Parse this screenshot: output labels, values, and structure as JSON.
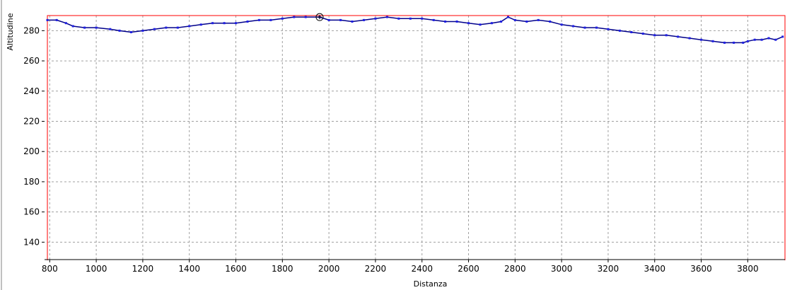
{
  "chart_data": {
    "type": "line",
    "title": "",
    "xlabel": "Distanza",
    "ylabel": "Altitudine",
    "xlim": [
      790,
      3960
    ],
    "ylim": [
      128,
      290
    ],
    "x_ticks": [
      "800",
      "1000",
      "1200",
      "1400",
      "1600",
      "1800",
      "2000",
      "2200",
      "2400",
      "2600",
      "2800",
      "3000",
      "3200",
      "3400",
      "3600",
      "3800"
    ],
    "y_ticks": [
      "140",
      "160",
      "180",
      "200",
      "220",
      "240",
      "260",
      "280"
    ],
    "grid": true,
    "legend": "none",
    "highlight_point": {
      "x": 1960,
      "y": 289
    },
    "series": [
      {
        "x": [
          790,
          830,
          870,
          900,
          950,
          1000,
          1060,
          1100,
          1150,
          1200,
          1250,
          1300,
          1350,
          1400,
          1450,
          1500,
          1550,
          1600,
          1650,
          1700,
          1750,
          1800,
          1850,
          1900,
          1960,
          2000,
          2050,
          2100,
          2150,
          2200,
          2250,
          2300,
          2350,
          2400,
          2450,
          2500,
          2550,
          2600,
          2650,
          2700,
          2740,
          2770,
          2800,
          2850,
          2900,
          2950,
          3000,
          3050,
          3100,
          3150,
          3200,
          3250,
          3300,
          3350,
          3400,
          3450,
          3500,
          3550,
          3600,
          3650,
          3700,
          3740,
          3780,
          3800,
          3830,
          3860,
          3890,
          3920,
          3950
        ],
        "y": [
          287,
          287,
          285,
          283,
          282,
          282,
          281,
          280,
          279,
          280,
          281,
          282,
          282,
          283,
          284,
          285,
          285,
          285,
          286,
          287,
          287,
          288,
          289,
          289,
          289,
          287,
          287,
          286,
          287,
          288,
          289,
          288,
          288,
          288,
          287,
          286,
          286,
          285,
          284,
          285,
          286,
          289,
          287,
          286,
          287,
          286,
          284,
          283,
          282,
          282,
          281,
          280,
          279,
          278,
          277,
          277,
          276,
          275,
          274,
          273,
          272,
          272,
          272,
          273,
          274,
          274,
          275,
          274,
          276
        ]
      }
    ]
  },
  "colors": {
    "line": "#00008b",
    "marker": "#1f1fe0",
    "frame": "#ff0000",
    "grid": "#a0a0a0",
    "axis": "#000000"
  }
}
